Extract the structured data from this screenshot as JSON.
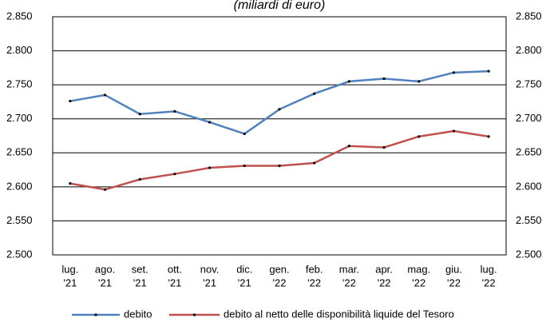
{
  "chart_data": {
    "type": "line",
    "title": "(miliardi di euro)",
    "categories": [
      [
        "lug.",
        "'21"
      ],
      [
        "ago.",
        "'21"
      ],
      [
        "set.",
        "'21"
      ],
      [
        "ott.",
        "'21"
      ],
      [
        "nov.",
        "'21"
      ],
      [
        "dic.",
        "'21"
      ],
      [
        "gen.",
        "'22"
      ],
      [
        "feb.",
        "'22"
      ],
      [
        "mar.",
        "'22"
      ],
      [
        "apr.",
        "'22"
      ],
      [
        "mag.",
        "'22"
      ],
      [
        "giu.",
        "'22"
      ],
      [
        "lug.",
        "'22"
      ]
    ],
    "series": [
      {
        "name": "debito",
        "color": "#4f81bd",
        "values": [
          2726,
          2735,
          2707,
          2711,
          2695,
          2678,
          2714,
          2737,
          2755,
          2759,
          2755,
          2768,
          2770
        ]
      },
      {
        "name": "debito al netto delle disponibilità liquide del Tesoro",
        "color": "#c0504d",
        "values": [
          2605,
          2596,
          2611,
          2619,
          2628,
          2631,
          2631,
          2635,
          2660,
          2658,
          2674,
          2682,
          2674
        ]
      }
    ],
    "ylim": [
      2500,
      2850
    ],
    "yticks": [
      {
        "value": 2500,
        "label": "2.500"
      },
      {
        "value": 2550,
        "label": "2.550"
      },
      {
        "value": 2600,
        "label": "2.600"
      },
      {
        "value": 2650,
        "label": "2.650"
      },
      {
        "value": 2700,
        "label": "2.700"
      },
      {
        "value": 2750,
        "label": "2.750"
      },
      {
        "value": 2800,
        "label": "2.800"
      },
      {
        "value": 2850,
        "label": "2.850"
      }
    ],
    "grid": true
  }
}
